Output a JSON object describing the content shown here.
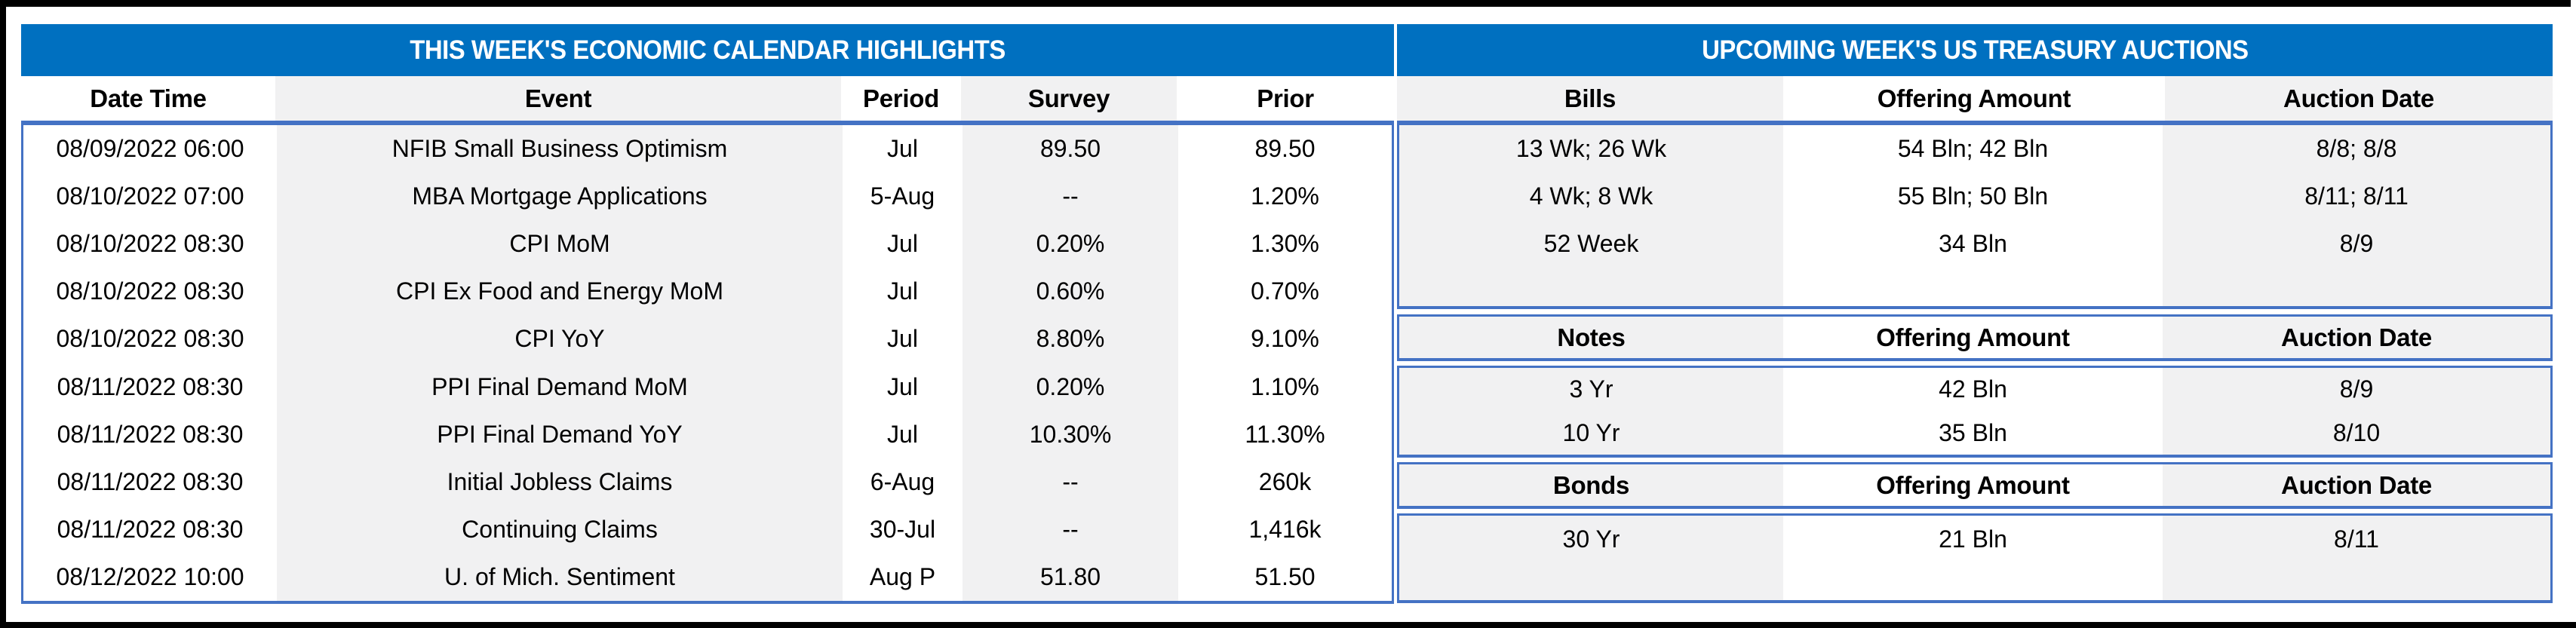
{
  "calendar": {
    "title": "THIS WEEK'S ECONOMIC CALENDAR HIGHLIGHTS",
    "columns": {
      "date_time": "Date Time",
      "event": "Event",
      "period": "Period",
      "survey": "Survey",
      "prior": "Prior"
    },
    "rows": [
      {
        "date_time": "08/09/2022 06:00",
        "event": "NFIB Small Business Optimism",
        "period": "Jul",
        "survey": "89.50",
        "prior": "89.50"
      },
      {
        "date_time": "08/10/2022 07:00",
        "event": "MBA Mortgage Applications",
        "period": "5-Aug",
        "survey": "--",
        "prior": "1.20%"
      },
      {
        "date_time": "08/10/2022 08:30",
        "event": "CPI MoM",
        "period": "Jul",
        "survey": "0.20%",
        "prior": "1.30%"
      },
      {
        "date_time": "08/10/2022 08:30",
        "event": "CPI Ex Food and Energy MoM",
        "period": "Jul",
        "survey": "0.60%",
        "prior": "0.70%"
      },
      {
        "date_time": "08/10/2022 08:30",
        "event": "CPI YoY",
        "period": "Jul",
        "survey": "8.80%",
        "prior": "9.10%"
      },
      {
        "date_time": "08/11/2022 08:30",
        "event": "PPI Final Demand MoM",
        "period": "Jul",
        "survey": "0.20%",
        "prior": "1.10%"
      },
      {
        "date_time": "08/11/2022 08:30",
        "event": "PPI Final Demand YoY",
        "period": "Jul",
        "survey": "10.30%",
        "prior": "11.30%"
      },
      {
        "date_time": "08/11/2022 08:30",
        "event": "Initial Jobless Claims",
        "period": "6-Aug",
        "survey": "--",
        "prior": "260k"
      },
      {
        "date_time": "08/11/2022 08:30",
        "event": "Continuing Claims",
        "period": "30-Jul",
        "survey": "--",
        "prior": "1,416k"
      },
      {
        "date_time": "08/12/2022 10:00",
        "event": "U. of Mich. Sentiment",
        "period": "Aug P",
        "survey": "51.80",
        "prior": "51.50"
      }
    ]
  },
  "auctions": {
    "title": "UPCOMING WEEK'S US TREASURY AUCTIONS",
    "offering_header": "Offering Amount",
    "date_header": "Auction Date",
    "bills": {
      "label": "Bills",
      "rows": [
        [
          "13 Wk; 26 Wk",
          "54 Bln; 42 Bln",
          "8/8; 8/8"
        ],
        [
          "4 Wk; 8 Wk",
          "55 Bln; 50 Bln",
          "8/11; 8/11"
        ],
        [
          "52 Week",
          "34 Bln",
          "8/9"
        ]
      ]
    },
    "notes": {
      "label": "Notes",
      "rows": [
        [
          "3 Yr",
          "42 Bln",
          "8/9"
        ],
        [
          "10 Yr",
          "35 Bln",
          "8/10"
        ]
      ]
    },
    "bonds": {
      "label": "Bonds",
      "rows": [
        [
          "30 Yr",
          "21 Bln",
          "8/11"
        ]
      ]
    }
  },
  "colors": {
    "title_bar_blue": "#0070C0",
    "table_border_blue": "#4472C4",
    "stripe_gray": "#F1F1F2",
    "frame_black": "#000000"
  }
}
